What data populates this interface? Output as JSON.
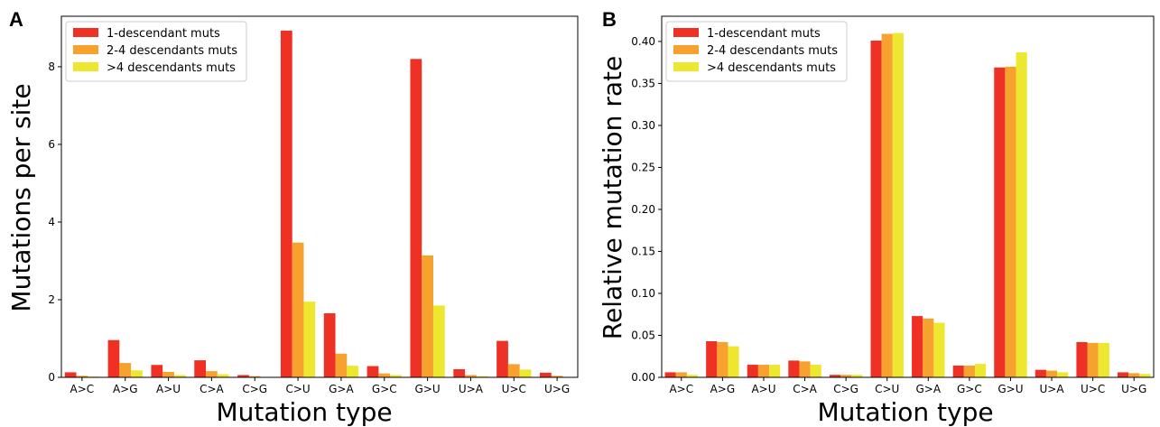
{
  "colors": {
    "s1": "#ee3124",
    "s2": "#f7a12f",
    "s3": "#ede72f"
  },
  "chart_data": [
    {
      "panel": "A",
      "type": "bar",
      "xlabel": "Mutation type",
      "ylabel": "Mutations per site",
      "ylim": [
        0,
        9.3
      ],
      "yticks": [
        0,
        2,
        4,
        6,
        8
      ],
      "ytick_labels": [
        "0",
        "2",
        "4",
        "6",
        "8"
      ],
      "legend_position": "top-left",
      "categories": [
        "A>C",
        "A>G",
        "A>U",
        "C>A",
        "C>G",
        "C>U",
        "G>A",
        "G>C",
        "G>U",
        "U>A",
        "U>C",
        "U>G"
      ],
      "series": [
        {
          "name": "1-descendant muts",
          "values": [
            0.13,
            0.96,
            0.32,
            0.44,
            0.06,
            8.93,
            1.65,
            0.29,
            8.2,
            0.21,
            0.94,
            0.12
          ]
        },
        {
          "name": "2-4 descendants muts",
          "values": [
            0.04,
            0.37,
            0.14,
            0.16,
            0.03,
            3.47,
            0.61,
            0.1,
            3.14,
            0.06,
            0.34,
            0.04
          ]
        },
        {
          "name": ">4 descendants muts",
          "values": [
            0.02,
            0.18,
            0.06,
            0.08,
            0.01,
            1.95,
            0.3,
            0.06,
            1.85,
            0.03,
            0.2,
            0.01
          ]
        }
      ]
    },
    {
      "panel": "B",
      "type": "bar",
      "xlabel": "Mutation type",
      "ylabel": "Relative mutation rate",
      "ylim": [
        0,
        0.43
      ],
      "yticks": [
        0,
        0.05,
        0.1,
        0.15,
        0.2,
        0.25,
        0.3,
        0.35,
        0.4
      ],
      "ytick_labels": [
        "0.00",
        "0.05",
        "0.10",
        "0.15",
        "0.20",
        "0.25",
        "0.30",
        "0.35",
        "0.40"
      ],
      "legend_position": "top-left",
      "categories": [
        "A>C",
        "A>G",
        "A>U",
        "C>A",
        "C>G",
        "C>U",
        "G>A",
        "G>C",
        "G>U",
        "U>A",
        "U>C",
        "U>G"
      ],
      "series": [
        {
          "name": "1-descendant muts",
          "values": [
            0.006,
            0.043,
            0.015,
            0.02,
            0.003,
            0.401,
            0.073,
            0.014,
            0.369,
            0.009,
            0.042,
            0.006
          ]
        },
        {
          "name": "2-4 descendants muts",
          "values": [
            0.006,
            0.042,
            0.015,
            0.019,
            0.003,
            0.409,
            0.07,
            0.014,
            0.37,
            0.008,
            0.041,
            0.005
          ]
        },
        {
          "name": ">4 descendants muts",
          "values": [
            0.003,
            0.037,
            0.015,
            0.015,
            0.003,
            0.41,
            0.065,
            0.016,
            0.387,
            0.006,
            0.041,
            0.004
          ]
        }
      ]
    }
  ]
}
